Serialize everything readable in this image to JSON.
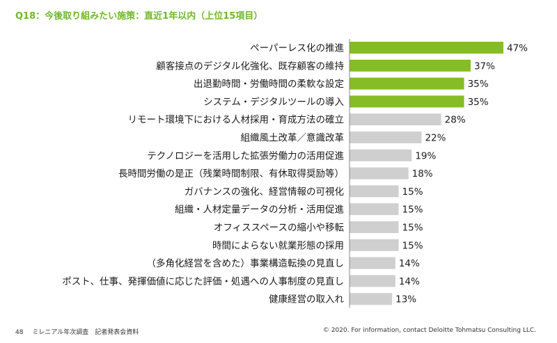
{
  "header": {
    "title": "Q18：今後取り組みたい施策：直近1年以内（上位15項目）"
  },
  "footer": {
    "page_number": "48",
    "doc_name": "ミレニアル年次調査　記者発表会資料",
    "copyright": "© 2020. For information, contact Deloitte Tohmatsu Consulting LLC."
  },
  "chart_data": {
    "type": "bar",
    "orientation": "horizontal",
    "title": "Q18：今後取り組みたい施策：直近1年以内（上位15項目）",
    "xlabel": "",
    "ylabel": "",
    "xlim": [
      0,
      47
    ],
    "unit": "%",
    "categories": [
      "ペーパーレス化の推進",
      "顧客接点のデジタル化強化、既存顧客の維持",
      "出退勤時間・労働時間の柔軟な設定",
      "システム・デジタルツールの導入",
      "リモート環境下における人材採用・育成方法の確立",
      "組織風土改革／意識改革",
      "テクノロジーを活用した拡張労働力の活用促進",
      "長時間労働の是正（残業時間制限、有休取得奨励等）",
      "ガバナンスの強化、経営情報の可視化",
      "組織・人材定量データの分析・活用促進",
      "オフィススペースの縮小や移転",
      "時間によらない就業形態の採用",
      "（多角化経営を含めた）事業構造転換の見直し",
      "ポスト、仕事、発揮価値に応じた評価・処遇への人事制度の見直し",
      "健康経営の取入れ"
    ],
    "values": [
      47,
      37,
      35,
      35,
      28,
      22,
      19,
      18,
      15,
      15,
      15,
      15,
      14,
      14,
      13
    ],
    "labels": [
      "47%",
      "37%",
      "35%",
      "35%",
      "28%",
      "22%",
      "19%",
      "18%",
      "15%",
      "15%",
      "15%",
      "15%",
      "14%",
      "14%",
      "13%"
    ],
    "highlight_count": 4,
    "colors": {
      "highlight": "#86bc25",
      "default": "#cfcfcf",
      "text": "#1a1a1a"
    }
  }
}
